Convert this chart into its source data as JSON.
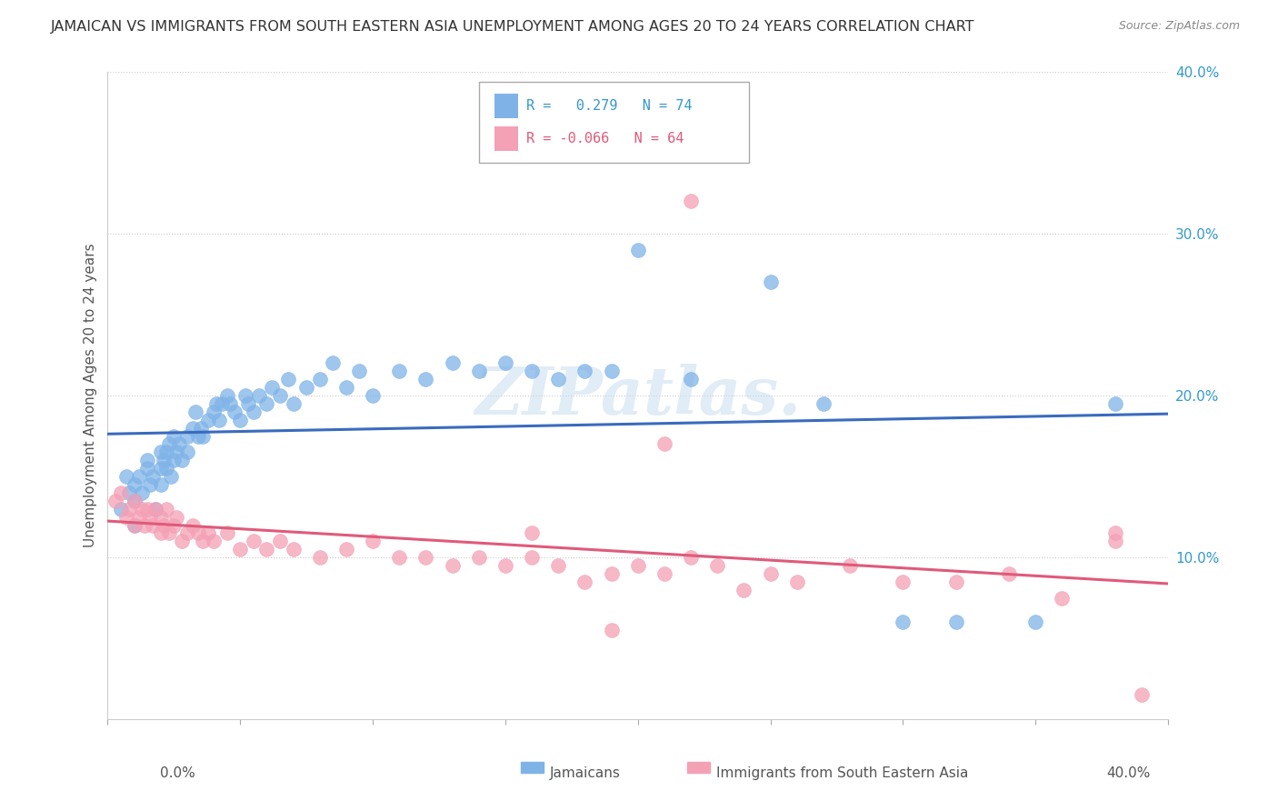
{
  "title": "JAMAICAN VS IMMIGRANTS FROM SOUTH EASTERN ASIA UNEMPLOYMENT AMONG AGES 20 TO 24 YEARS CORRELATION CHART",
  "source": "Source: ZipAtlas.com",
  "ylabel": "Unemployment Among Ages 20 to 24 years",
  "xmin": 0.0,
  "xmax": 0.4,
  "ymin": 0.0,
  "ymax": 0.4,
  "yticks": [
    0.1,
    0.2,
    0.3,
    0.4
  ],
  "ytick_labels": [
    "10.0%",
    "20.0%",
    "30.0%",
    "40.0%"
  ],
  "r_jamaican": 0.279,
  "n_jamaican": 74,
  "r_sea": -0.066,
  "n_sea": 64,
  "color_jamaican": "#7fb3e8",
  "color_sea": "#f4a0b5",
  "line_color_jamaican": "#3a6bbf",
  "line_color_sea": "#e05a7a",
  "background_color": "#ffffff",
  "grid_color": "#cccccc",
  "watermark": "ZIPatlas.",
  "legend_label_jamaican": "Jamaicans",
  "legend_label_sea": "Immigrants from South Eastern Asia",
  "jamaican_x": [
    0.005,
    0.007,
    0.008,
    0.01,
    0.01,
    0.01,
    0.012,
    0.013,
    0.015,
    0.015,
    0.016,
    0.017,
    0.018,
    0.02,
    0.02,
    0.02,
    0.021,
    0.022,
    0.022,
    0.023,
    0.024,
    0.025,
    0.025,
    0.026,
    0.027,
    0.028,
    0.03,
    0.03,
    0.032,
    0.033,
    0.034,
    0.035,
    0.036,
    0.038,
    0.04,
    0.041,
    0.042,
    0.043,
    0.045,
    0.046,
    0.048,
    0.05,
    0.052,
    0.053,
    0.055,
    0.057,
    0.06,
    0.062,
    0.065,
    0.068,
    0.07,
    0.075,
    0.08,
    0.085,
    0.09,
    0.095,
    0.1,
    0.11,
    0.12,
    0.13,
    0.14,
    0.15,
    0.16,
    0.17,
    0.18,
    0.19,
    0.2,
    0.22,
    0.25,
    0.27,
    0.3,
    0.32,
    0.35,
    0.38
  ],
  "jamaican_y": [
    0.13,
    0.15,
    0.14,
    0.12,
    0.145,
    0.135,
    0.15,
    0.14,
    0.155,
    0.16,
    0.145,
    0.15,
    0.13,
    0.155,
    0.165,
    0.145,
    0.16,
    0.155,
    0.165,
    0.17,
    0.15,
    0.16,
    0.175,
    0.165,
    0.17,
    0.16,
    0.165,
    0.175,
    0.18,
    0.19,
    0.175,
    0.18,
    0.175,
    0.185,
    0.19,
    0.195,
    0.185,
    0.195,
    0.2,
    0.195,
    0.19,
    0.185,
    0.2,
    0.195,
    0.19,
    0.2,
    0.195,
    0.205,
    0.2,
    0.21,
    0.195,
    0.205,
    0.21,
    0.22,
    0.205,
    0.215,
    0.2,
    0.215,
    0.21,
    0.22,
    0.215,
    0.22,
    0.215,
    0.21,
    0.215,
    0.215,
    0.29,
    0.21,
    0.27,
    0.195,
    0.06,
    0.06,
    0.06,
    0.195
  ],
  "sea_x": [
    0.003,
    0.005,
    0.007,
    0.008,
    0.01,
    0.01,
    0.012,
    0.013,
    0.014,
    0.015,
    0.016,
    0.017,
    0.018,
    0.02,
    0.02,
    0.021,
    0.022,
    0.023,
    0.025,
    0.026,
    0.028,
    0.03,
    0.032,
    0.034,
    0.036,
    0.038,
    0.04,
    0.045,
    0.05,
    0.055,
    0.06,
    0.065,
    0.07,
    0.08,
    0.09,
    0.1,
    0.11,
    0.12,
    0.13,
    0.14,
    0.15,
    0.16,
    0.17,
    0.18,
    0.19,
    0.2,
    0.21,
    0.22,
    0.23,
    0.24,
    0.25,
    0.26,
    0.28,
    0.3,
    0.32,
    0.34,
    0.36,
    0.38,
    0.21,
    0.16,
    0.22,
    0.38,
    0.19,
    0.39
  ],
  "sea_y": [
    0.135,
    0.14,
    0.125,
    0.13,
    0.12,
    0.135,
    0.125,
    0.13,
    0.12,
    0.13,
    0.125,
    0.12,
    0.13,
    0.125,
    0.115,
    0.12,
    0.13,
    0.115,
    0.12,
    0.125,
    0.11,
    0.115,
    0.12,
    0.115,
    0.11,
    0.115,
    0.11,
    0.115,
    0.105,
    0.11,
    0.105,
    0.11,
    0.105,
    0.1,
    0.105,
    0.11,
    0.1,
    0.1,
    0.095,
    0.1,
    0.095,
    0.1,
    0.095,
    0.085,
    0.09,
    0.095,
    0.09,
    0.1,
    0.095,
    0.08,
    0.09,
    0.085,
    0.095,
    0.085,
    0.085,
    0.09,
    0.075,
    0.11,
    0.17,
    0.115,
    0.32,
    0.115,
    0.055,
    0.015
  ]
}
